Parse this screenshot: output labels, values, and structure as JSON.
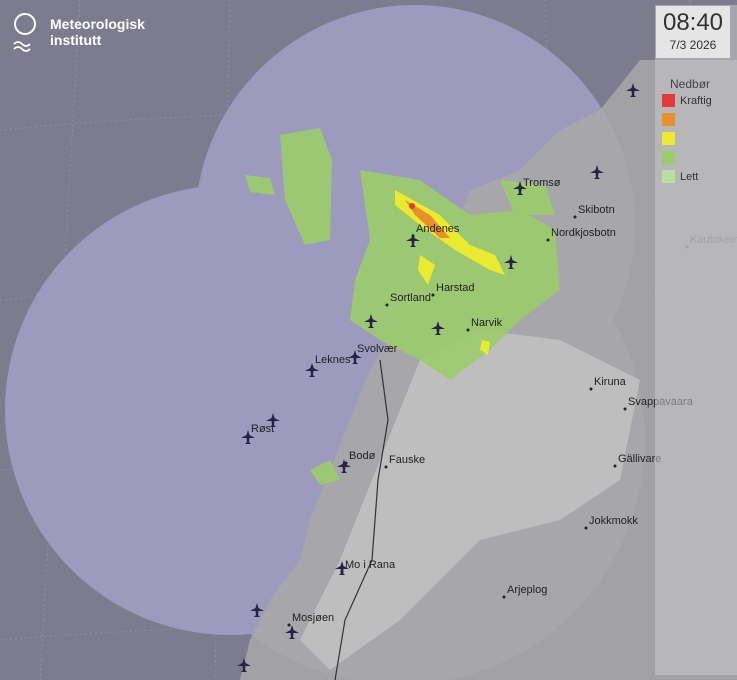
{
  "logo": {
    "line1": "Meteorologisk",
    "line2": "institutt"
  },
  "time": "08:40",
  "date": "7/3 2026",
  "legend": {
    "title": "Nedbør",
    "items": [
      {
        "color": "#e03a3a",
        "label": "Kraftig"
      },
      {
        "color": "#e8902a"
      },
      {
        "color": "#eaea30"
      },
      {
        "color": "#9ccc6c"
      },
      {
        "color": "#b8e09c",
        "label": "Lett"
      }
    ]
  },
  "places": [
    "Tromsø",
    "Skibotn",
    "Nordkjosbotn",
    "Andenes",
    "Harstad",
    "Sortland",
    "Narvik",
    "Kiruna",
    "Svappavaara",
    "Gällivare",
    "Jokkmokk",
    "Arjeplog",
    "Mo i Rana",
    "Mosjøen",
    "Bodø",
    "Fauske",
    "Leknes",
    "Svolvær",
    "Røst",
    "Kautokeino"
  ]
}
